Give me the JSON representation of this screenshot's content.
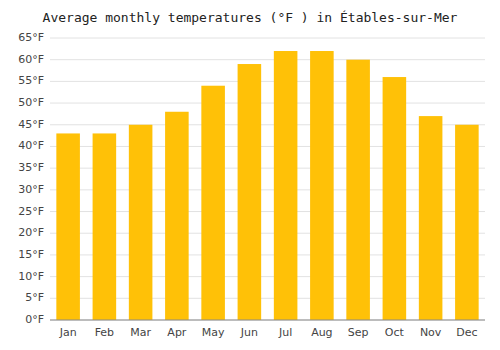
{
  "chart_data": {
    "type": "bar",
    "title": "Average monthly temperatures (°F ) in Étables-sur-Mer",
    "categories": [
      "Jan",
      "Feb",
      "Mar",
      "Apr",
      "May",
      "Jun",
      "Jul",
      "Aug",
      "Sep",
      "Oct",
      "Nov",
      "Dec"
    ],
    "values": [
      43,
      43,
      45,
      48,
      54,
      59,
      62,
      62,
      60,
      56,
      47,
      45
    ],
    "color": "#FFC107",
    "ylim": [
      0,
      65
    ],
    "yticks": [
      {
        "value": 0,
        "label": "0°F"
      },
      {
        "value": 5,
        "label": "5°F"
      },
      {
        "value": 10,
        "label": "10°F"
      },
      {
        "value": 15,
        "label": "15°F"
      },
      {
        "value": 20,
        "label": "20°F"
      },
      {
        "value": 25,
        "label": "25°F"
      },
      {
        "value": 30,
        "label": "30°F"
      },
      {
        "value": 35,
        "label": "35°F"
      },
      {
        "value": 40,
        "label": "40°F"
      },
      {
        "value": 45,
        "label": "45°F"
      },
      {
        "value": 50,
        "label": "50°F"
      },
      {
        "value": 55,
        "label": "55°F"
      },
      {
        "value": 60,
        "label": "60°F"
      },
      {
        "value": 65,
        "label": "65°F"
      }
    ],
    "grid": true
  }
}
